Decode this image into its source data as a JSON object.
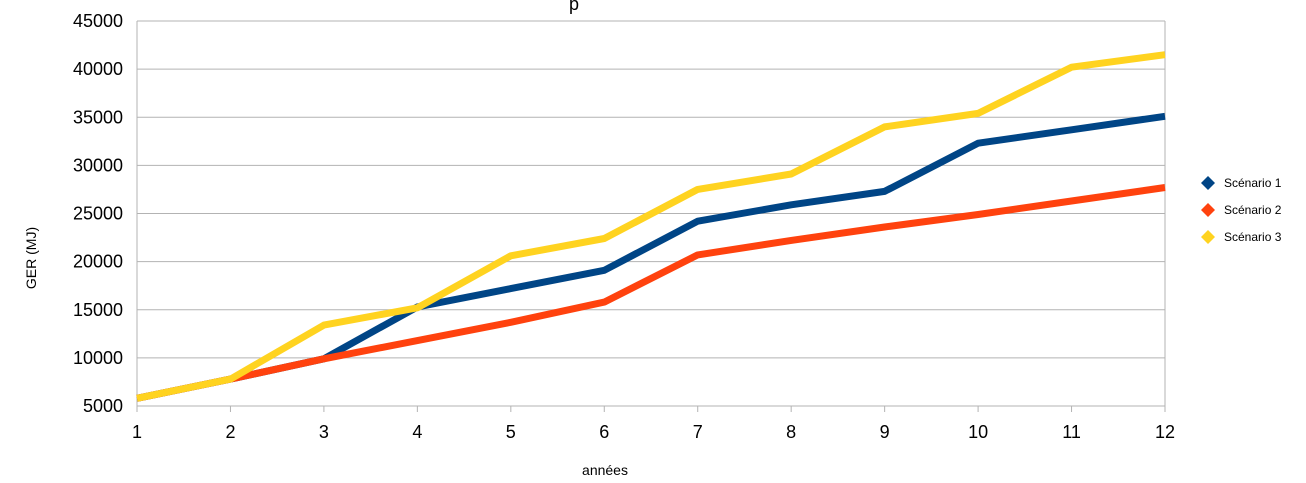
{
  "chart_data": {
    "type": "line",
    "title": "p",
    "xlabel": "années",
    "ylabel": "GER (MJ)",
    "x": [
      "1",
      "2",
      "3",
      "4",
      "5",
      "6",
      "7",
      "8",
      "9",
      "10",
      "11",
      "12"
    ],
    "ylim": [
      5000,
      45000
    ],
    "yticks": [
      5000,
      10000,
      15000,
      20000,
      25000,
      30000,
      35000,
      40000,
      45000
    ],
    "grid": true,
    "legend_position": "right",
    "series": [
      {
        "name": "Scénario 1",
        "color": "#004586",
        "values": [
          5800,
          7800,
          9900,
          15300,
          17200,
          19100,
          24200,
          25900,
          27300,
          32300,
          33700,
          35100
        ]
      },
      {
        "name": "Scénario 2",
        "color": "#ff420e",
        "values": [
          5800,
          7800,
          9900,
          11800,
          13700,
          15800,
          20700,
          22200,
          23600,
          24900,
          26300,
          27700
        ]
      },
      {
        "name": "Scénario 3",
        "color": "#ffd320",
        "values": [
          5800,
          7800,
          13400,
          15200,
          20600,
          22400,
          27500,
          29100,
          34000,
          35400,
          40200,
          41500
        ]
      }
    ]
  }
}
